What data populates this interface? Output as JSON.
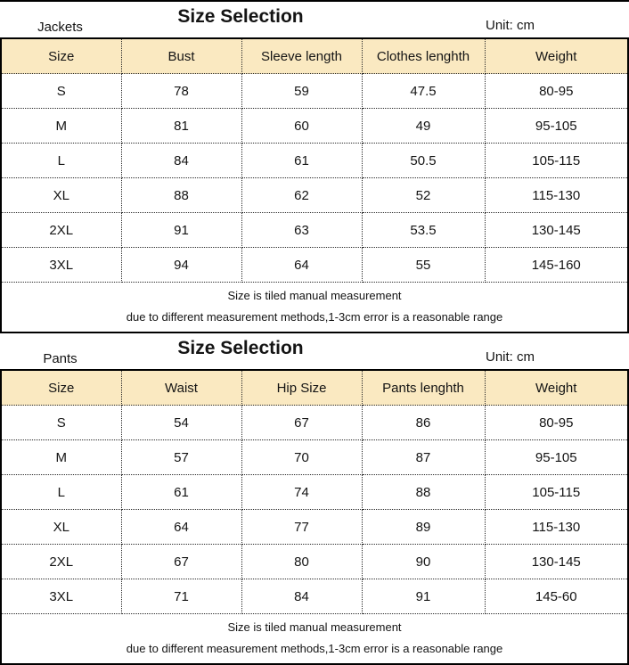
{
  "colors": {
    "header_bg": "#FAE9C1",
    "border": "#000000",
    "text": "#141414",
    "background": "#ffffff"
  },
  "tables": [
    {
      "label": "Jackets",
      "title": "Size Selection",
      "unit": "Unit: cm",
      "columns": [
        "Size",
        "Bust",
        "Sleeve length",
        "Clothes lenghth",
        "Weight"
      ],
      "rows": [
        [
          "S",
          "78",
          "59",
          "47.5",
          "80-95"
        ],
        [
          "M",
          "81",
          "60",
          "49",
          "95-105"
        ],
        [
          "L",
          "84",
          "61",
          "50.5",
          "105-115"
        ],
        [
          "XL",
          "88",
          "62",
          "52",
          "115-130"
        ],
        [
          "2XL",
          "91",
          "63",
          "53.5",
          "130-145"
        ],
        [
          "3XL",
          "94",
          "64",
          "55",
          "145-160"
        ]
      ],
      "notes": [
        "Size is tiled manual measurement",
        "due to different measurement methods,1-3cm error is a reasonable range"
      ]
    },
    {
      "label": "Pants",
      "title": "Size Selection",
      "unit": "Unit: cm",
      "columns": [
        "Size",
        "Waist",
        "Hip Size",
        "Pants lenghth",
        "Weight"
      ],
      "rows": [
        [
          "S",
          "54",
          "67",
          "86",
          "80-95"
        ],
        [
          "M",
          "57",
          "70",
          "87",
          "95-105"
        ],
        [
          "L",
          "61",
          "74",
          "88",
          "105-115"
        ],
        [
          "XL",
          "64",
          "77",
          "89",
          "115-130"
        ],
        [
          "2XL",
          "67",
          "80",
          "90",
          "130-145"
        ],
        [
          "3XL",
          "71",
          "84",
          "91",
          "145-60"
        ]
      ],
      "notes": [
        "Size is tiled manual measurement",
        "due to different measurement methods,1-3cm error is a reasonable range"
      ]
    }
  ]
}
